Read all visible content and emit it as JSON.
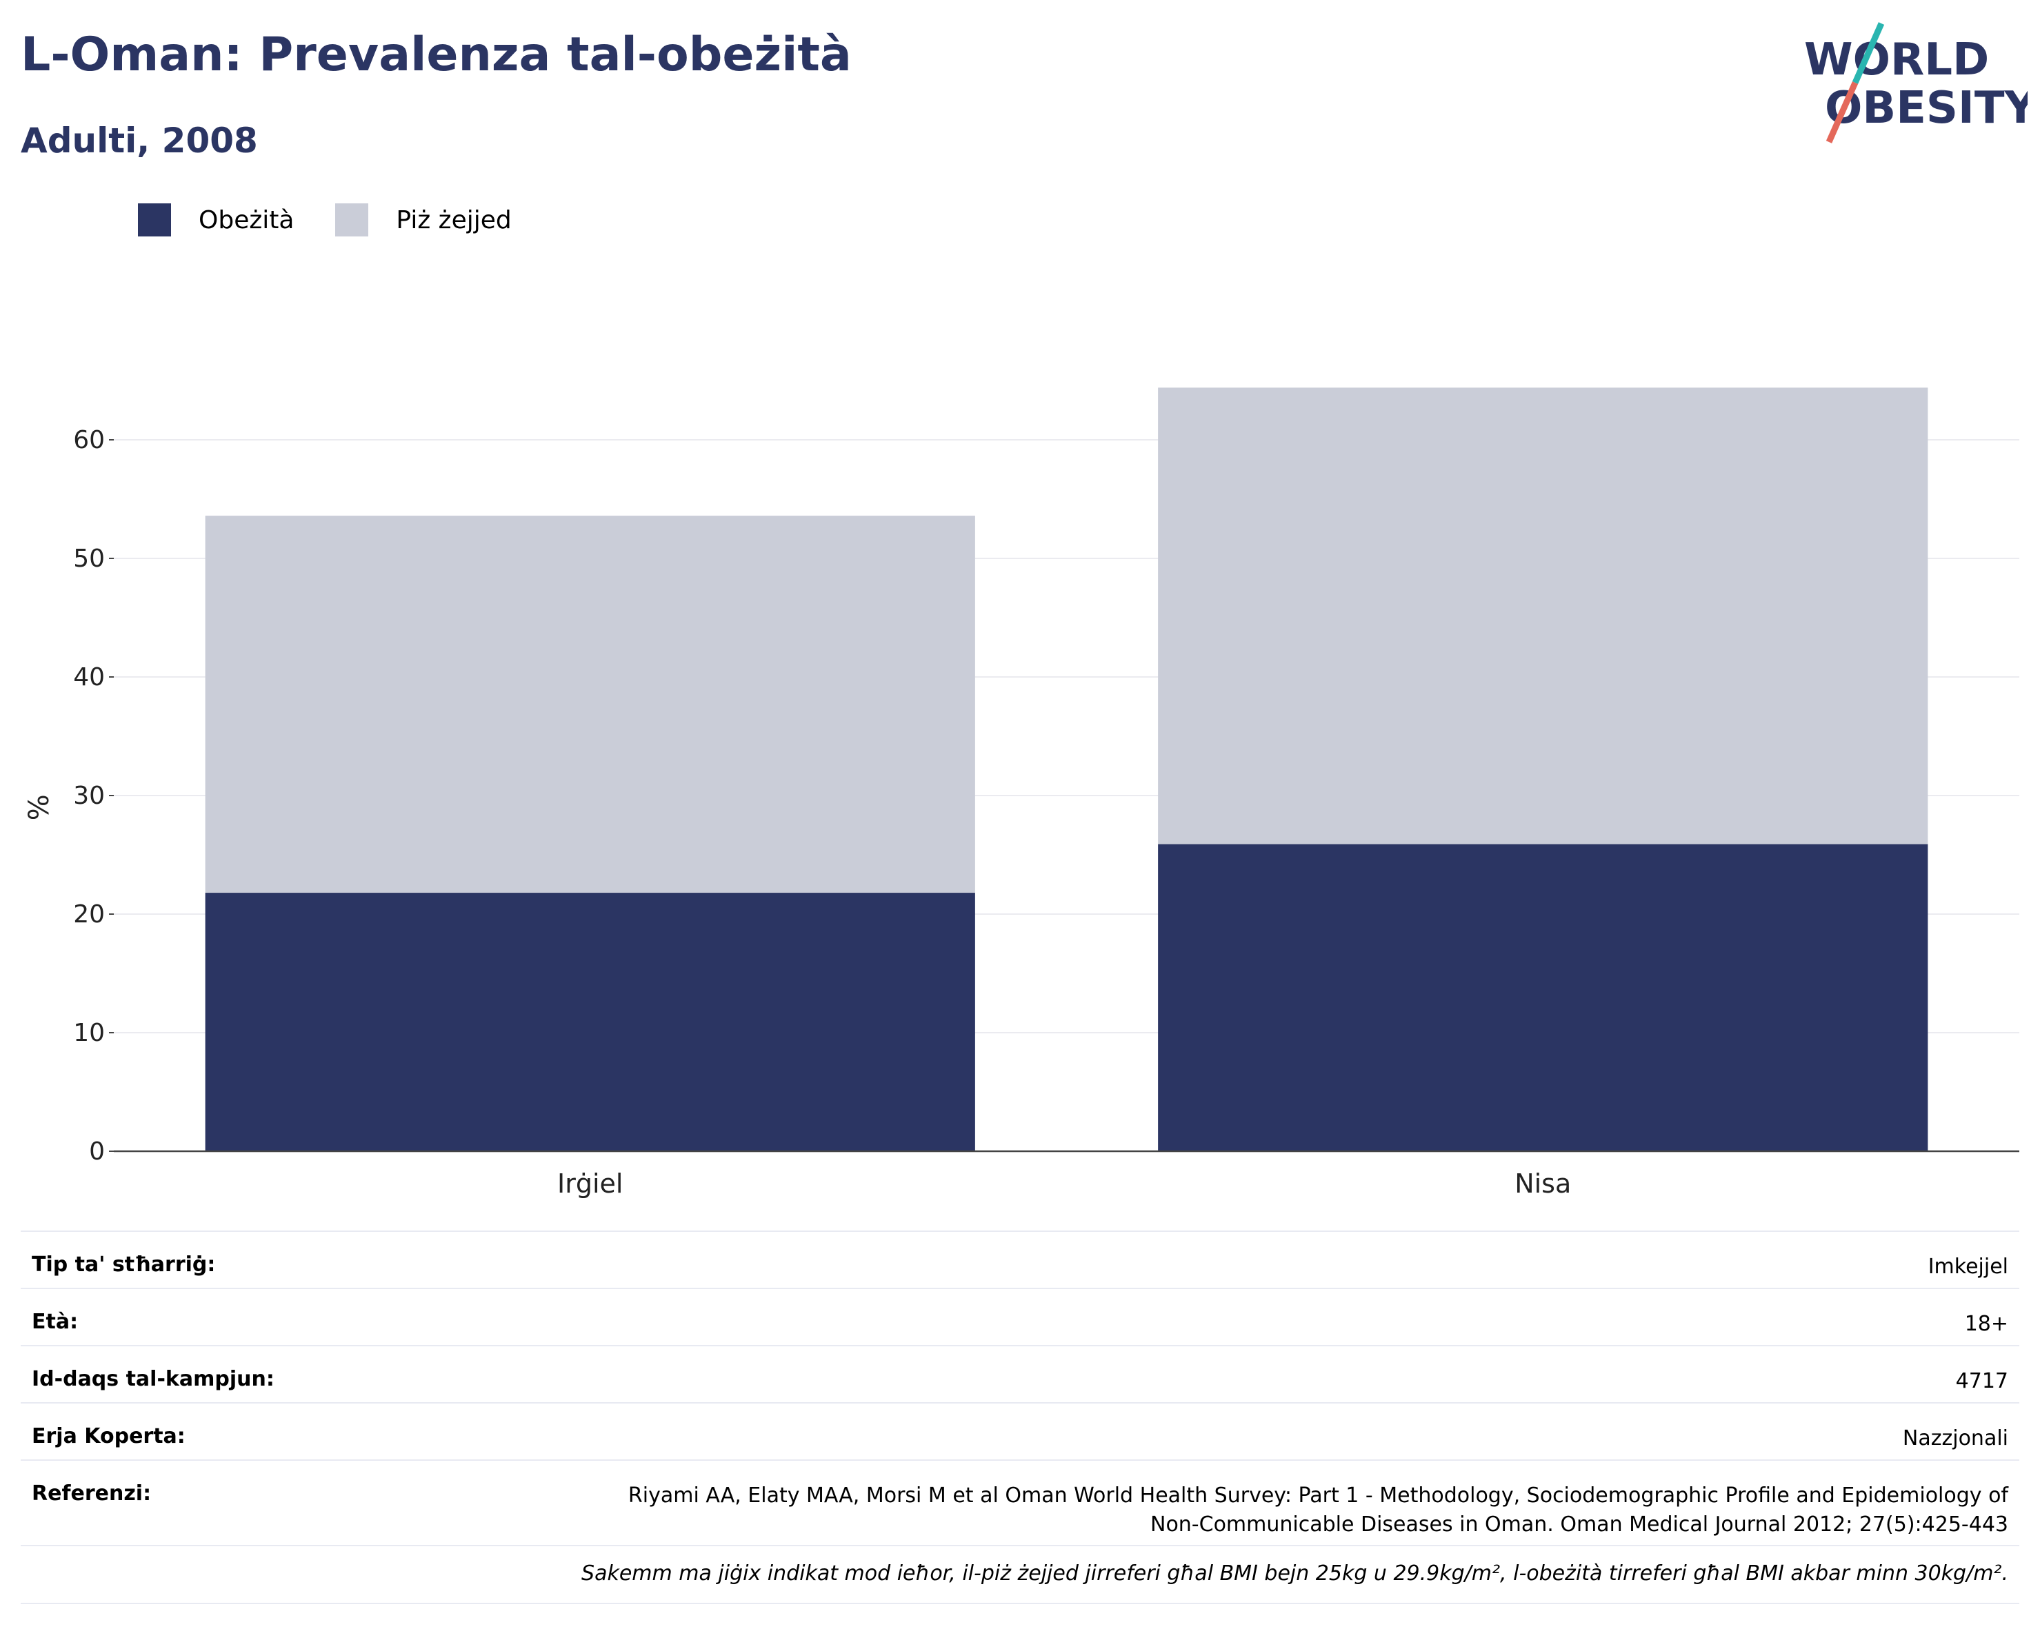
{
  "header": {
    "title": "L-Oman: Prevalenza tal-obeżità",
    "subtitle": "Adulti, 2008"
  },
  "logo": {
    "line1": "WORLD",
    "line2": "OBESITY",
    "colors": {
      "text": "#2b3563",
      "slash_top": "#2ab5b0",
      "slash_bottom": "#e4685a"
    }
  },
  "legend": [
    {
      "label": "Obeżità",
      "color": "#2b3563"
    },
    {
      "label": "Piż żejjed",
      "color": "#cacdd8"
    }
  ],
  "chart_data": {
    "type": "bar",
    "stacked": true,
    "categories": [
      "Irġiel",
      "Nisa"
    ],
    "series": [
      {
        "name": "Obeżità",
        "values": [
          21.8,
          25.9
        ],
        "color": "#2b3563"
      },
      {
        "name": "Piż żejjed",
        "values": [
          31.8,
          38.5
        ],
        "color": "#cacdd8"
      }
    ],
    "ylabel": "%",
    "yticks": [
      0,
      10,
      20,
      30,
      40,
      50,
      60
    ],
    "ylim": [
      0,
      70
    ],
    "grid": true,
    "legend_position": "top-left"
  },
  "info": {
    "rows": [
      {
        "key": "Tip ta' stħarriġ:",
        "value": "Imkejjel"
      },
      {
        "key": "Età:",
        "value": "18+"
      },
      {
        "key": "Id-daqs tal-kampjun:",
        "value": "4717"
      },
      {
        "key": "Erja Koperta:",
        "value": "Nazzjonali"
      }
    ],
    "reference_key": "Referenzi:",
    "reference_line1": "Riyami AA, Elaty MAA, Morsi M et al Oman World Health Survey: Part 1 - Methodology, Sociodemographic Profile and Epidemiology of",
    "reference_line2": "Non-Communicable Diseases in Oman. Oman Medical Journal 2012; 27(5):425-443",
    "note": "Sakemm ma jiġix indikat mod ieħor, il-piż żejjed jirreferi għal BMI bejn 25kg u 29.9kg/m², l-obeżità tirreferi għal BMI akbar minn 30kg/m²."
  }
}
